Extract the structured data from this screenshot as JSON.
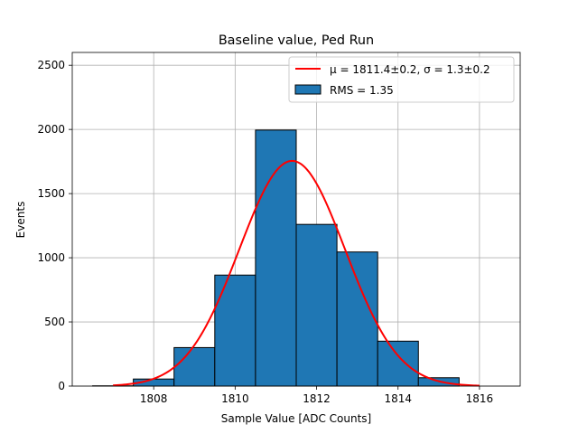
{
  "chart_data": {
    "type": "bar",
    "title": "Baseline value, Ped Run",
    "xlabel": "Sample Value [ADC Counts]",
    "ylabel": "Events",
    "xlim": [
      806.0,
      1817.0
    ],
    "xlim_note": "",
    "xrange": [
      1806.0,
      1817.0
    ],
    "ylim": [
      0,
      2600
    ],
    "xticks": [
      1808,
      1810,
      1812,
      1814,
      1816
    ],
    "yticks": [
      0,
      500,
      1000,
      1500,
      2000,
      2500
    ],
    "grid": true,
    "legend_position": "top-right",
    "histogram": {
      "name": "RMS = 1.35",
      "color": "#1f77b4",
      "edgecolor": "#000000",
      "bins": [
        {
          "x0": 1806.5,
          "x1": 1807.5,
          "count": 2
        },
        {
          "x0": 1807.5,
          "x1": 1808.5,
          "count": 55
        },
        {
          "x0": 1808.5,
          "x1": 1809.5,
          "count": 300
        },
        {
          "x0": 1809.5,
          "x1": 1810.5,
          "count": 865
        },
        {
          "x0": 1810.5,
          "x1": 1811.5,
          "count": 1995
        },
        {
          "x0": 1811.5,
          "x1": 1812.5,
          "count": 1260
        },
        {
          "x0": 1812.5,
          "x1": 1813.5,
          "count": 1045
        },
        {
          "x0": 1813.5,
          "x1": 1814.5,
          "count": 350
        },
        {
          "x0": 1814.5,
          "x1": 1815.5,
          "count": 65
        }
      ]
    },
    "fit": {
      "name_mu": "μ = 1811.4±0.2, ",
      "name_sigma": "σ = 1.3±0.2",
      "color": "#ff0000",
      "type": "gaussian",
      "mu": 1811.4,
      "sigma": 1.3,
      "amplitude": 1755,
      "x_start": 1807.0,
      "x_end": 1816.0
    }
  }
}
